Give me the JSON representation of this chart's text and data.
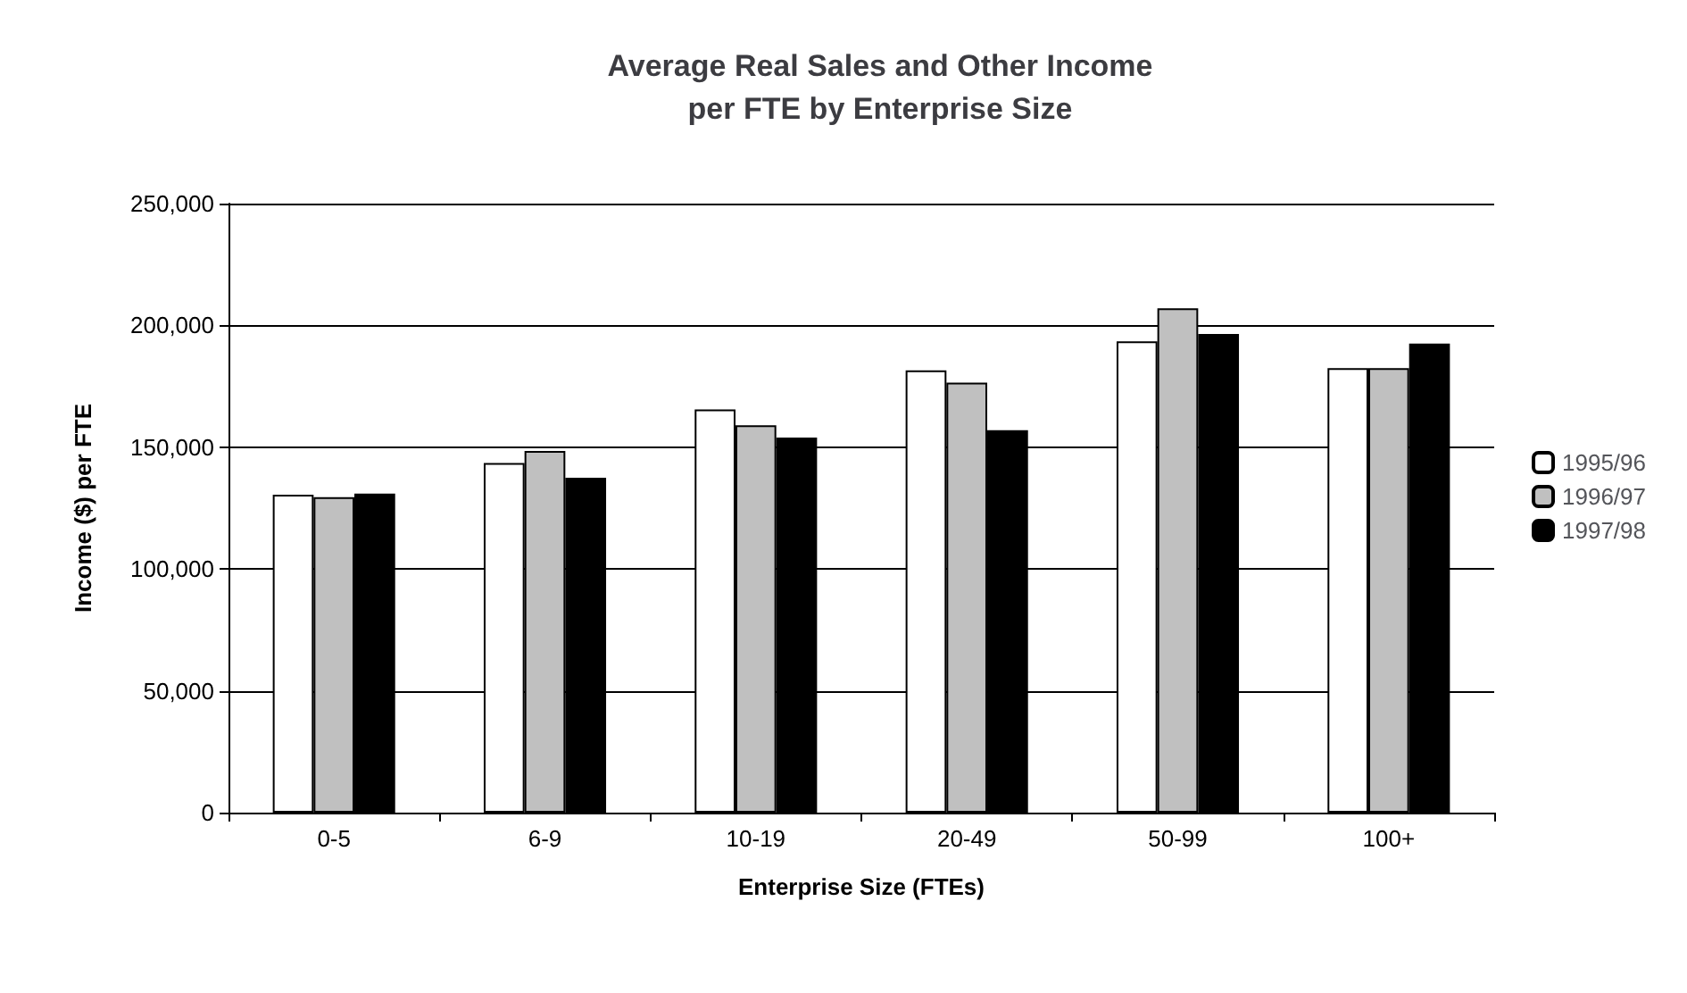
{
  "chart_data": {
    "type": "bar",
    "title": "Average Real Sales and Other Income\nper FTE by Enterprise Size",
    "xlabel": "Enterprise Size (FTEs)",
    "ylabel": "Income ($) per FTE",
    "categories": [
      "0-5",
      "6-9",
      "10-19",
      "20-49",
      "50-99",
      "100+"
    ],
    "series": [
      {
        "name": "1995/96",
        "color": "#ffffff",
        "values": [
          130500,
          143500,
          165500,
          181500,
          193500,
          182500
        ]
      },
      {
        "name": "1996/97",
        "color": "#c0c0c0",
        "values": [
          129500,
          148500,
          159000,
          176500,
          207000,
          182500
        ]
      },
      {
        "name": "1997/98",
        "color": "#000000",
        "values": [
          131000,
          137500,
          154000,
          157000,
          196500,
          192500
        ]
      }
    ],
    "ylim": [
      0,
      250000
    ],
    "yticks": [
      {
        "value": 0,
        "label": "0"
      },
      {
        "value": 50000,
        "label": "50,000"
      },
      {
        "value": 100000,
        "label": "100,000"
      },
      {
        "value": 150000,
        "label": "150,000"
      },
      {
        "value": 200000,
        "label": "200,000"
      },
      {
        "value": 250000,
        "label": "250,000"
      }
    ],
    "grid": "y",
    "legend": "right"
  }
}
